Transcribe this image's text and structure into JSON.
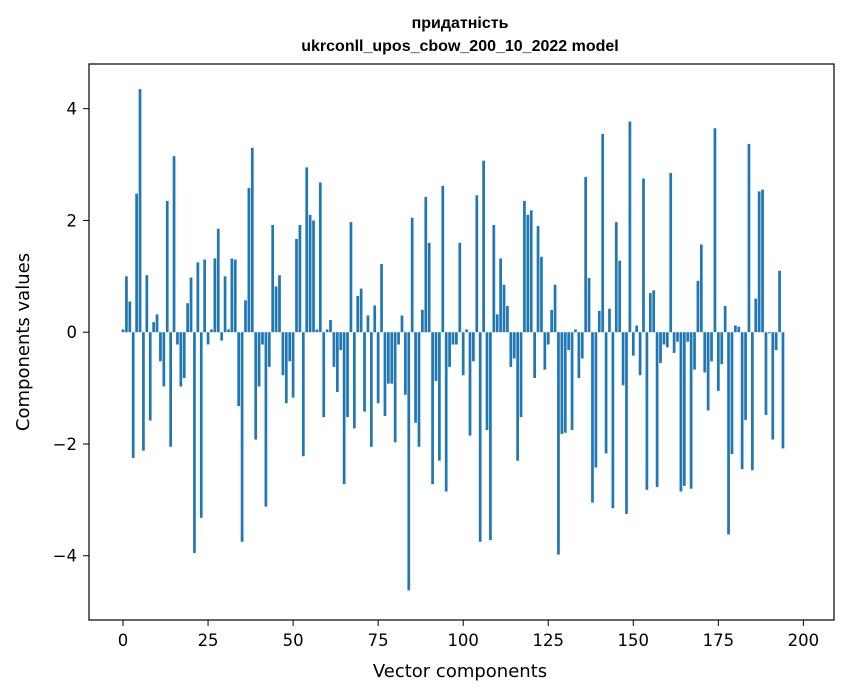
{
  "chart_data": {
    "type": "bar",
    "title": "придатність",
    "subtitle": "ukrconll_upos_cbow_200_10_2022 model",
    "xlabel": "Vector components",
    "ylabel": "Components values",
    "xlim": [
      -10,
      209
    ],
    "ylim": [
      -5.15,
      4.8
    ],
    "xticks": [
      0,
      25,
      50,
      75,
      100,
      125,
      150,
      175,
      200
    ],
    "yticks": [
      -4,
      -2,
      0,
      2,
      4
    ],
    "bar_color": "#1f77b4",
    "grid": false,
    "legend": "none",
    "values": [
      0.05,
      1.0,
      0.55,
      -2.25,
      2.48,
      4.35,
      -2.12,
      1.02,
      -1.58,
      0.18,
      0.32,
      -0.52,
      -0.97,
      2.35,
      -2.05,
      3.15,
      -0.22,
      -0.97,
      -0.82,
      0.52,
      0.98,
      -3.95,
      1.25,
      -3.32,
      1.3,
      -0.22,
      0.05,
      1.32,
      1.85,
      -0.15,
      1.0,
      0.05,
      1.32,
      1.3,
      -1.32,
      -3.75,
      0.57,
      2.58,
      3.3,
      -1.92,
      -0.97,
      -0.22,
      -3.12,
      -0.62,
      1.92,
      0.82,
      1.02,
      -0.77,
      -1.27,
      -0.52,
      -1.17,
      1.67,
      1.92,
      -2.22,
      2.95,
      2.1,
      2.0,
      0.05,
      2.68,
      -1.52,
      0.05,
      0.22,
      -0.62,
      -1.07,
      -0.32,
      -2.72,
      -1.52,
      1.97,
      -1.72,
      0.65,
      0.78,
      -1.42,
      0.3,
      -2.05,
      0.48,
      -1.27,
      1.22,
      -1.5,
      -0.92,
      -0.92,
      -1.97,
      -0.22,
      0.3,
      -1.12,
      -4.62,
      2.05,
      -1.62,
      -2.05,
      0.4,
      2.42,
      1.6,
      -2.72,
      -0.87,
      -2.3,
      2.62,
      -2.85,
      -0.62,
      -0.22,
      -0.22,
      1.6,
      -0.77,
      0.05,
      -1.85,
      -0.52,
      2.45,
      -3.75,
      3.07,
      -1.75,
      -3.72,
      1.92,
      0.32,
      1.32,
      0.85,
      0.47,
      -0.62,
      -0.47,
      -2.3,
      -1.52,
      2.35,
      2.1,
      2.18,
      -0.82,
      1.9,
      1.35,
      -0.67,
      -0.22,
      0.4,
      0.85,
      -3.98,
      -1.82,
      -1.8,
      -0.32,
      -1.75,
      0.05,
      -0.82,
      -0.47,
      2.78,
      0.97,
      -3.05,
      -2.42,
      0.38,
      3.55,
      -2.17,
      0.42,
      -3.15,
      1.97,
      1.28,
      -0.95,
      -3.25,
      3.77,
      -0.42,
      0.12,
      -0.77,
      2.75,
      -2.82,
      0.7,
      0.75,
      -2.77,
      -0.55,
      -0.22,
      -0.27,
      2.85,
      -0.37,
      -0.17,
      -2.85,
      -2.75,
      -0.17,
      -2.8,
      -0.67,
      0.92,
      1.57,
      -0.72,
      -1.4,
      -0.52,
      3.65,
      -1.05,
      -0.57,
      0.47,
      -3.62,
      -2.18,
      0.12,
      0.1,
      -2.45,
      -1.57,
      3.37,
      -2.47,
      0.6,
      2.52,
      2.55,
      -1.48,
      -0.02,
      -1.92,
      -0.32,
      1.1,
      -2.08
    ]
  }
}
